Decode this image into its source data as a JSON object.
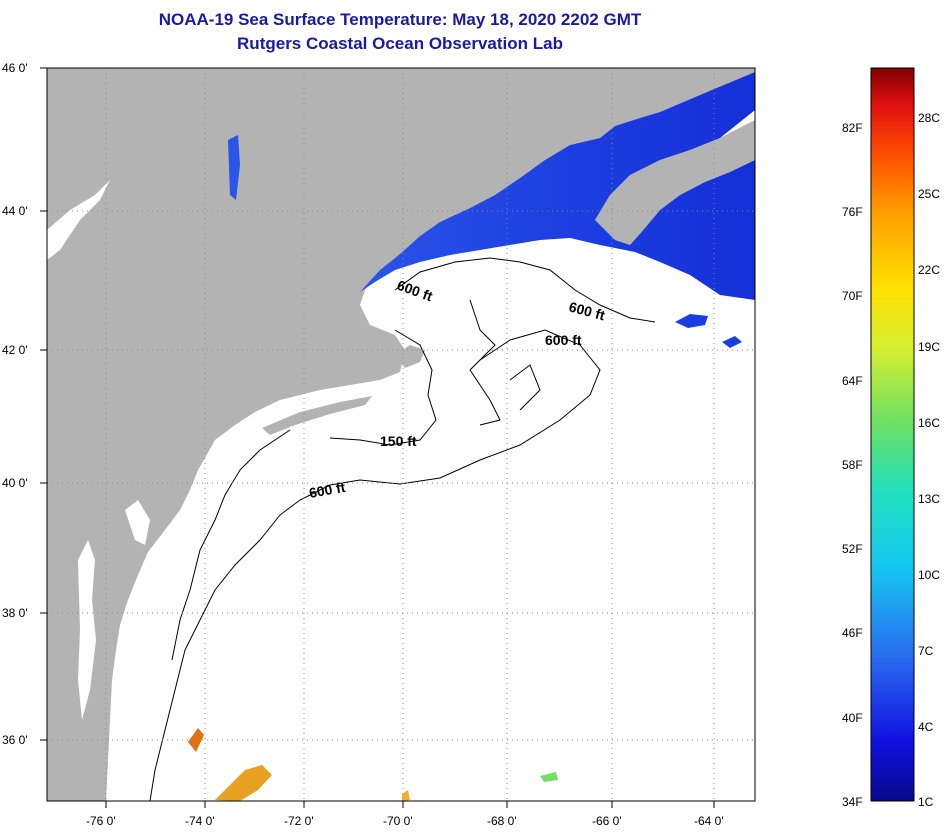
{
  "title": {
    "line1": "NOAA-19 Sea Surface Temperature:  May 18, 2020 2202 GMT",
    "line2": "Rutgers Coastal Ocean Observation Lab"
  },
  "colors": {
    "title": "#1a1aa6",
    "land": "#b3b3b3",
    "water": "#ffffff",
    "cold_water": "#1f3fe0"
  },
  "map": {
    "lat_labels": [
      "46 0'",
      "44 0'",
      "42 0'",
      "40 0'",
      "38 0'",
      "36 0'"
    ],
    "lon_labels": [
      "-76 0'",
      "-74 0'",
      "-72 0'",
      "-70 0'",
      "-68 0'",
      "-66 0'",
      "-64 0'"
    ],
    "contour_labels": [
      "600 ft",
      "600 ft",
      "600 ft",
      "150 ft",
      "600 ft"
    ]
  },
  "colorbar": {
    "f_labels": [
      "82F",
      "76F",
      "70F",
      "64F",
      "58F",
      "52F",
      "46F",
      "40F",
      "34F"
    ],
    "c_labels": [
      "28C",
      "25C",
      "22C",
      "19C",
      "16C",
      "13C",
      "10C",
      "7C",
      "4C",
      "1C"
    ]
  }
}
